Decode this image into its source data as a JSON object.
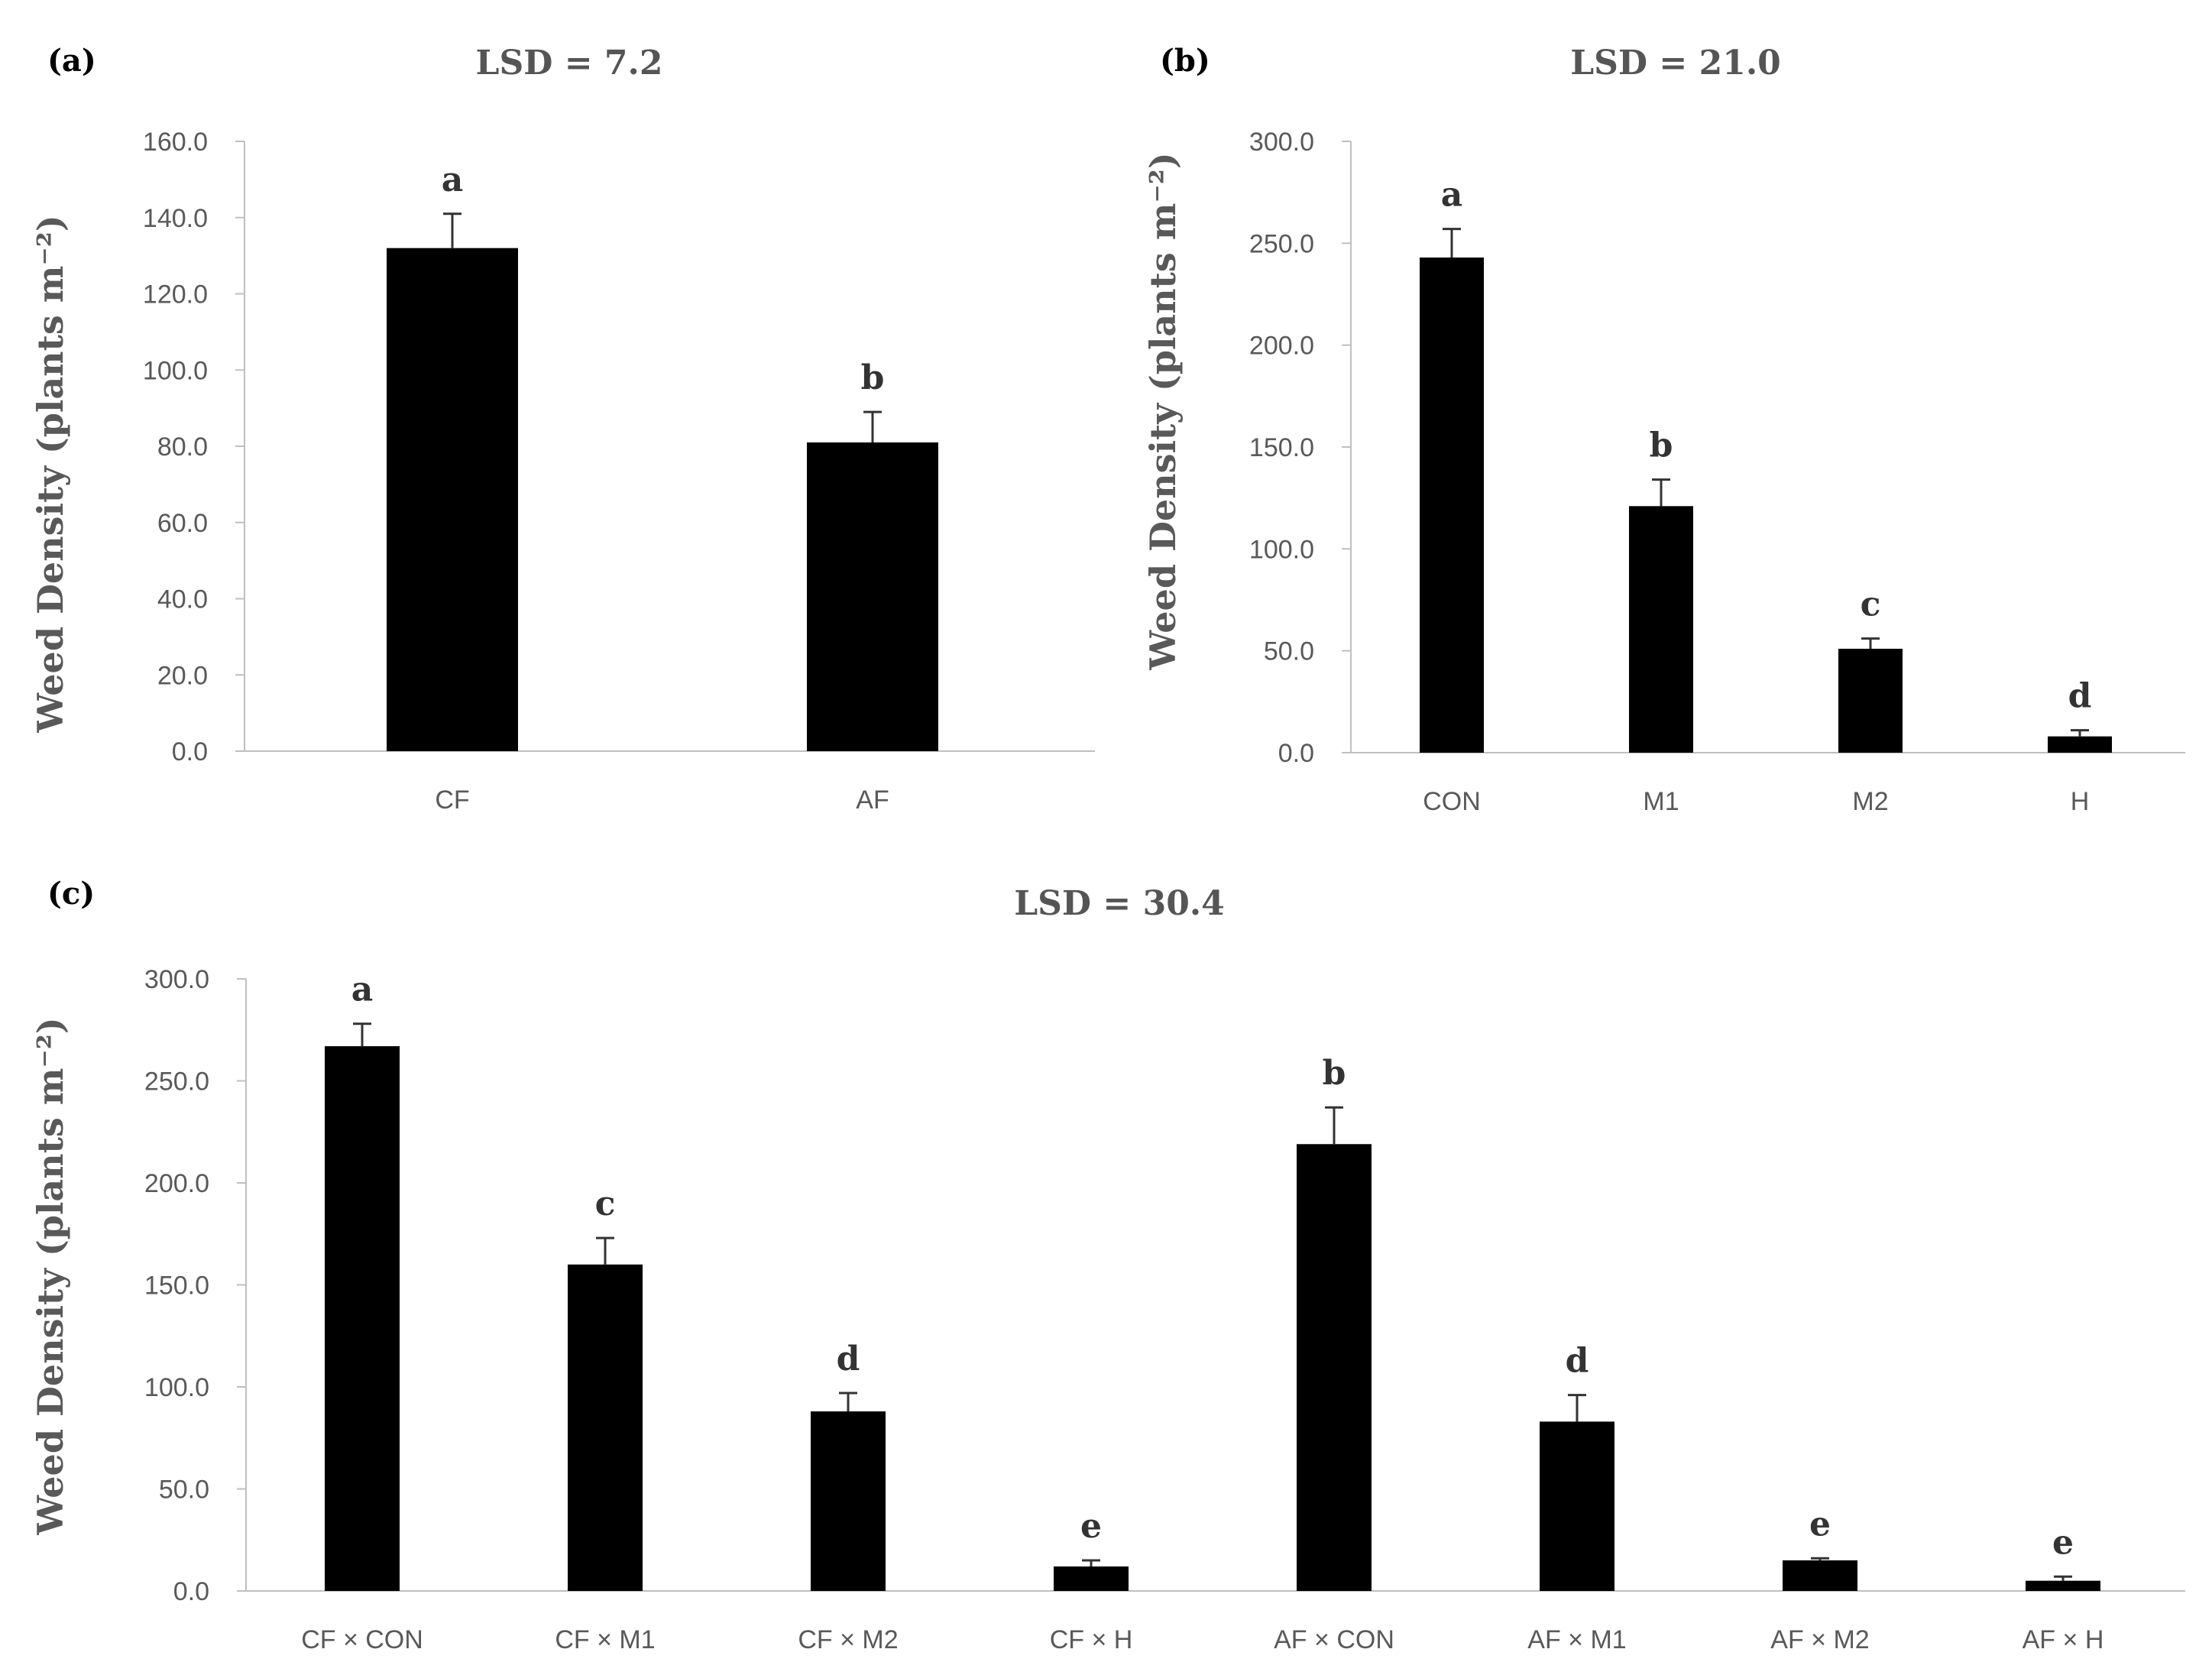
{
  "chart_data": [
    {
      "panel": "(a)",
      "type": "bar",
      "title": "LSD = 7.2",
      "ylabel": "Weed Density (plants m⁻²)",
      "xlabel": "",
      "ylim": [
        0,
        160
      ],
      "yticks": [
        "0.0",
        "20.0",
        "40.0",
        "60.0",
        "80.0",
        "100.0",
        "120.0",
        "140.0",
        "160.0"
      ],
      "categories": [
        "CF",
        "AF"
      ],
      "values": [
        132,
        81
      ],
      "errors": [
        9,
        8
      ],
      "letters": [
        "a",
        "b"
      ],
      "grid": false
    },
    {
      "panel": "(b)",
      "type": "bar",
      "title": "LSD = 21.0",
      "ylabel": "Weed Density (plants m⁻²)",
      "xlabel": "",
      "ylim": [
        0,
        300
      ],
      "yticks": [
        "0.0",
        "50.0",
        "100.0",
        "150.0",
        "200.0",
        "250.0",
        "300.0"
      ],
      "categories": [
        "CON",
        "M1",
        "M2",
        "H"
      ],
      "values": [
        243,
        121,
        51,
        8
      ],
      "errors": [
        14,
        13,
        5,
        3
      ],
      "letters": [
        "a",
        "b",
        "c",
        "d"
      ],
      "grid": false
    },
    {
      "panel": "(c)",
      "type": "bar",
      "title": "LSD = 30.4",
      "ylabel": "Weed Density (plants m⁻²)",
      "xlabel": "",
      "ylim": [
        0,
        300
      ],
      "yticks": [
        "0.0",
        "50.0",
        "100.0",
        "150.0",
        "200.0",
        "250.0",
        "300.0"
      ],
      "categories": [
        "CF × CON",
        "CF × M1",
        "CF × M2",
        "CF × H",
        "AF × CON",
        "AF × M1",
        "AF × M2",
        "AF × H"
      ],
      "values": [
        267,
        160,
        88,
        12,
        219,
        83,
        15,
        5
      ],
      "errors": [
        11,
        13,
        9,
        3,
        18,
        13,
        1,
        2
      ],
      "letters": [
        "a",
        "c",
        "d",
        "e",
        "b",
        "d",
        "e",
        "e"
      ],
      "grid": false
    }
  ],
  "colors": {
    "bar": "#000000",
    "axis": "#bfbfbf",
    "text": "#595959"
  }
}
